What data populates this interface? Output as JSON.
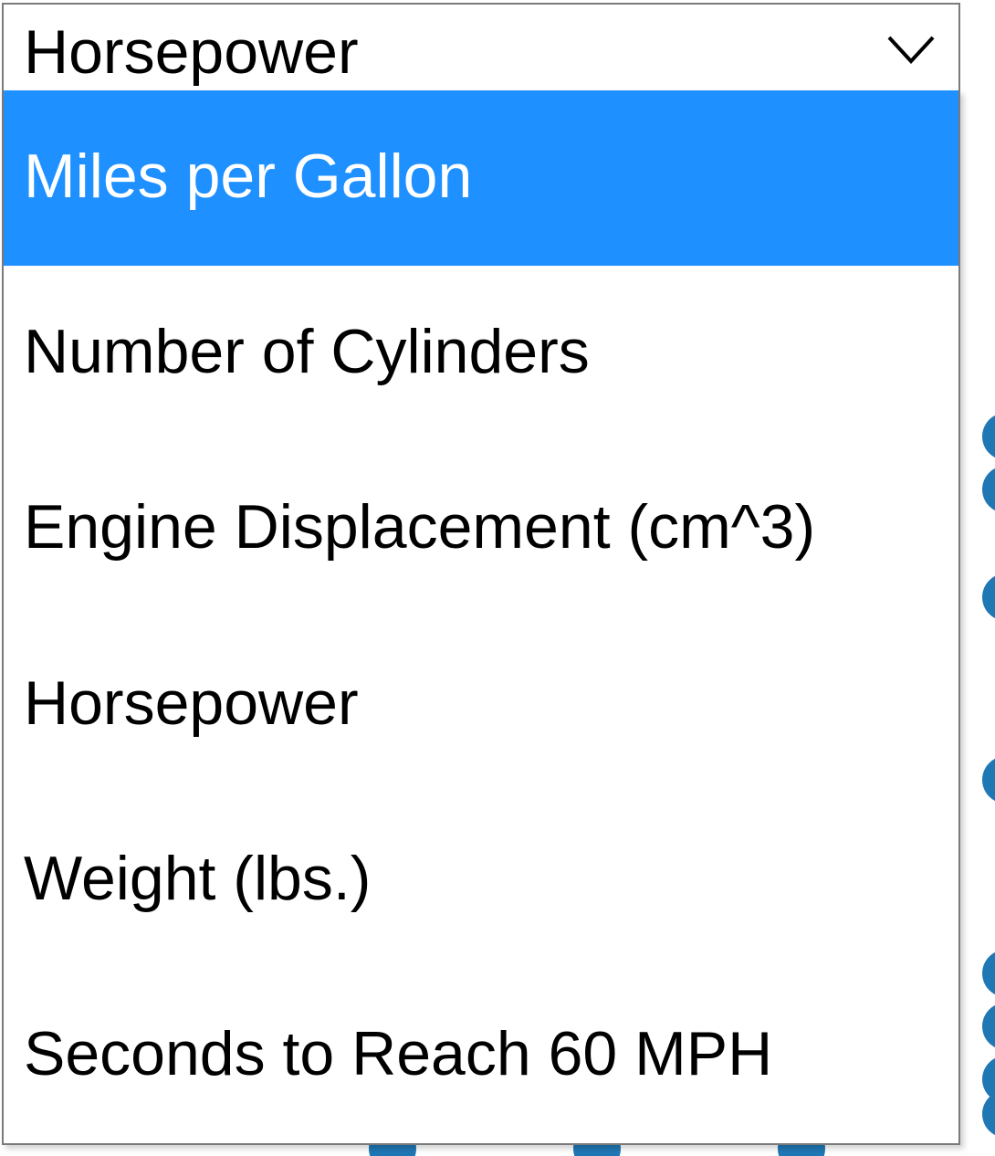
{
  "select": {
    "selected_value": "Horsepower",
    "options": [
      {
        "label": "Miles per Gallon",
        "highlighted": true
      },
      {
        "label": "Number of Cylinders",
        "highlighted": false
      },
      {
        "label": "Engine Displacement (cm^3)",
        "highlighted": false
      },
      {
        "label": "Horsepower",
        "highlighted": false
      },
      {
        "label": "Weight (lbs.)",
        "highlighted": false
      },
      {
        "label": "Seconds to Reach 60 MPH",
        "highlighted": false
      }
    ]
  },
  "colors": {
    "highlight_bg": "#1e90ff",
    "highlight_text": "#ffffff",
    "dot_color": "#1f77b4",
    "border": "#7a7a7a"
  },
  "icons": {
    "chevron": "chevron-down-icon"
  }
}
